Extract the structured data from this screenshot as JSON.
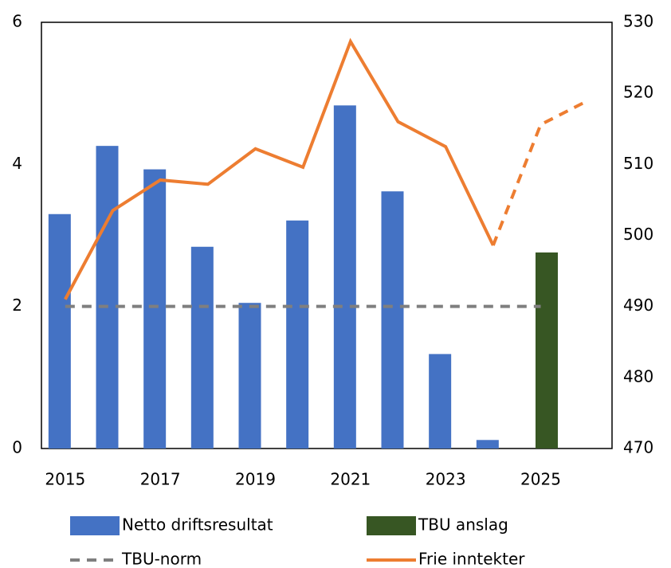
{
  "chart_data": {
    "type": "combo",
    "categories": [
      "2015",
      null,
      "2017",
      null,
      "2019",
      null,
      "2021",
      null,
      "2023",
      null,
      "2025",
      null
    ],
    "ylim": [
      0,
      6
    ],
    "yticks": [
      0,
      2,
      4,
      6
    ],
    "y2lim": [
      470,
      530
    ],
    "y2ticks": [
      470,
      480,
      490,
      500,
      510,
      520,
      530
    ],
    "series": [
      {
        "name": "Netto driftsresultat",
        "kind": "bar",
        "color": "#4472c4",
        "values": [
          3.3,
          4.26,
          3.93,
          2.84,
          2.05,
          3.21,
          4.83,
          3.62,
          1.33,
          0.12,
          null,
          null
        ]
      },
      {
        "name": "TBU anslag",
        "kind": "bar",
        "color": "#375623",
        "values": [
          null,
          null,
          null,
          null,
          null,
          null,
          null,
          null,
          null,
          null,
          2.76,
          null
        ]
      },
      {
        "name": "TBU-norm",
        "kind": "line",
        "dashed": true,
        "color": "#7f7f7f",
        "values": [
          2,
          2,
          2,
          2,
          2,
          2,
          2,
          2,
          2,
          2,
          2,
          null
        ]
      },
      {
        "name": "Frie inntekter",
        "kind": "line",
        "axis": "y2",
        "color": "#ed7d31",
        "values": [
          491,
          503.5,
          507.8,
          507.2,
          512.2,
          509.6,
          527.3,
          516.0,
          512.5,
          498.6,
          null,
          null
        ]
      },
      {
        "kind": "line",
        "axis": "y2",
        "dashed": true,
        "color": "#ed7d31",
        "values": [
          null,
          null,
          null,
          null,
          null,
          null,
          null,
          null,
          null,
          498.6,
          515.6,
          519.0
        ]
      }
    ]
  }
}
